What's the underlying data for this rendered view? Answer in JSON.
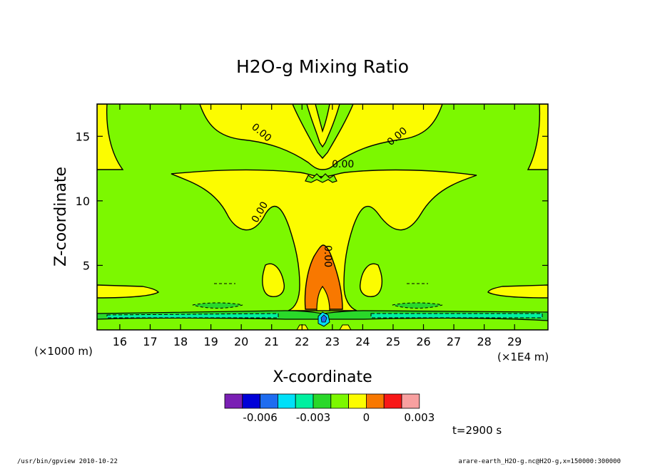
{
  "chart_data": {
    "type": "heatmap",
    "title": "H2O-g Mixing Ratio",
    "xlabel": "X-coordinate",
    "ylabel": "Z-coordinate",
    "x_unit_left": "(×1000 m)",
    "x_unit_right": "(×1E4 m)",
    "xlim": [
      15.25,
      30.1
    ],
    "ylim": [
      0,
      17.5
    ],
    "x_ticks": [
      16,
      17,
      18,
      19,
      20,
      21,
      22,
      23,
      24,
      25,
      26,
      27,
      28,
      29
    ],
    "y_ticks": [
      5,
      10,
      15
    ],
    "contour_labels": [
      {
        "text": "0.00",
        "x": 20.6,
        "z": 15.1,
        "rotate": 40
      },
      {
        "text": "0.00",
        "x": 23.35,
        "z": 12.6,
        "rotate": 0
      },
      {
        "text": "0.00",
        "x": 25.2,
        "z": 14.8,
        "rotate": -40
      },
      {
        "text": "0.00",
        "x": 20.7,
        "z": 9.0,
        "rotate": -60
      },
      {
        "text": "0.00",
        "x": 22.75,
        "z": 5.7,
        "rotate": 90
      }
    ],
    "colorbar": {
      "colors": [
        "#7a1fb4",
        "#0000d8",
        "#1e6cf0",
        "#00e0f8",
        "#00f0a0",
        "#2ad82a",
        "#7cf800",
        "#fcfc00",
        "#f87800",
        "#f81818",
        "#f8a0a0"
      ],
      "tick_labels": [
        "-0.006",
        "-0.003",
        "0",
        "0.003"
      ],
      "tick_index": [
        2,
        5,
        8,
        11
      ]
    },
    "time_label": "t=2900 s"
  },
  "footer": {
    "left": "/usr/bin/gpview  2010-10-22",
    "right": "arare-earth_H2O-g.nc@H2O-g,x=150000:300000"
  }
}
